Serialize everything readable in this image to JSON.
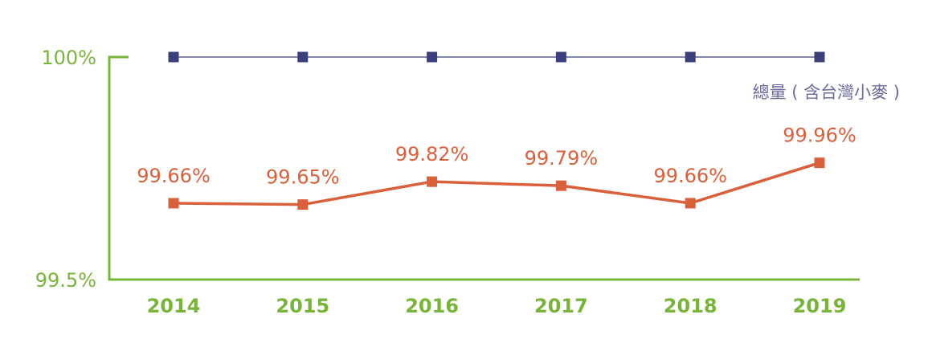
{
  "chart_data": {
    "type": "line",
    "categories": [
      "2014",
      "2015",
      "2016",
      "2017",
      "2018",
      "2019"
    ],
    "ylim": [
      99.5,
      100
    ],
    "y_ticks": [
      {
        "value": 100,
        "label": "100%"
      },
      {
        "value": 99.5,
        "label": "99.5%"
      }
    ],
    "series": [
      {
        "name": "總量 ( 含台灣小麥 )",
        "values": [
          100,
          100,
          100,
          100,
          100,
          100
        ],
        "color": "#3b3f7c",
        "marker": "square",
        "show_labels": false
      },
      {
        "name": "",
        "values": [
          99.66,
          99.65,
          99.82,
          99.79,
          99.66,
          99.96
        ],
        "labels": [
          "99.66%",
          "99.65%",
          "99.82%",
          "99.79%",
          "99.66%",
          "99.96%"
        ],
        "color": "#d9603b",
        "marker": "square",
        "show_labels": true
      }
    ],
    "legend": {
      "text": "總量 ( 含台灣小麥 )",
      "position": "top-right",
      "color": "#6a6c9e"
    },
    "axis_color": "#79b43a",
    "grid": false
  }
}
